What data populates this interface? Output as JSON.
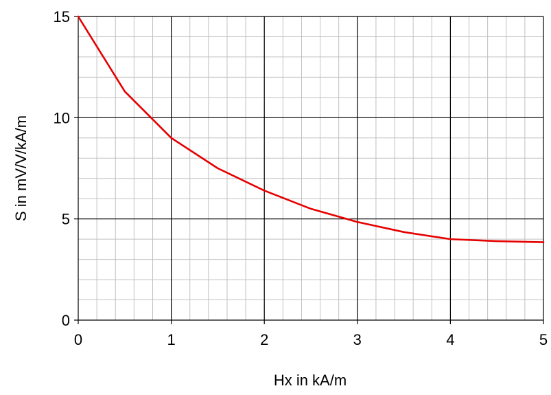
{
  "chart_data": {
    "type": "line",
    "title": "",
    "xlabel": "Hx in kA/m",
    "ylabel": "S in mV/V/kA/m",
    "xlim": [
      0,
      5
    ],
    "ylim": [
      0,
      15
    ],
    "x_ticks": [
      "0",
      "1",
      "2",
      "3",
      "4",
      "5"
    ],
    "y_ticks": [
      "0",
      "5",
      "10",
      "15"
    ],
    "x_major_step": 1,
    "y_major_step": 5,
    "x_minor_step": 0.2,
    "y_minor_step": 1,
    "grid": true,
    "series": [
      {
        "color": "#e60000",
        "x": [
          0,
          0.5,
          1,
          1.5,
          2,
          2.5,
          3,
          3.5,
          4,
          4.5,
          5
        ],
        "y": [
          15.0,
          11.3,
          9.0,
          7.5,
          6.4,
          5.5,
          4.85,
          4.35,
          4.0,
          3.9,
          3.85
        ]
      }
    ]
  }
}
